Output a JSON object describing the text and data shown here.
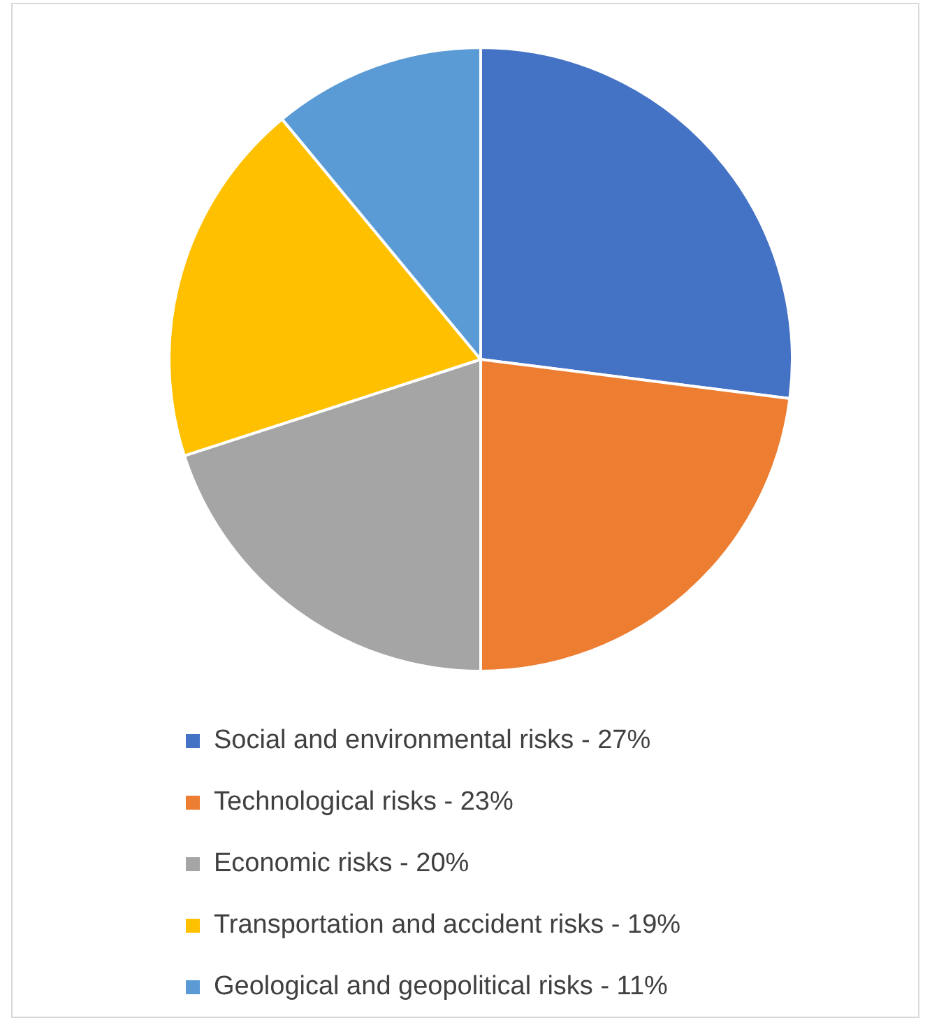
{
  "chart_data": {
    "type": "pie",
    "categories": [
      "Social and environmental risks - 27%",
      "Technological risks - 23%",
      "Economic risks - 20%",
      "Transportation and accident risks - 19%",
      "Geological and geopolitical risks - 11%"
    ],
    "values": [
      27,
      23,
      20,
      19,
      11
    ],
    "colors": [
      "#4472c4",
      "#ed7d31",
      "#a5a5a5",
      "#ffc000",
      "#5b9bd5"
    ],
    "legend": "bottom"
  }
}
